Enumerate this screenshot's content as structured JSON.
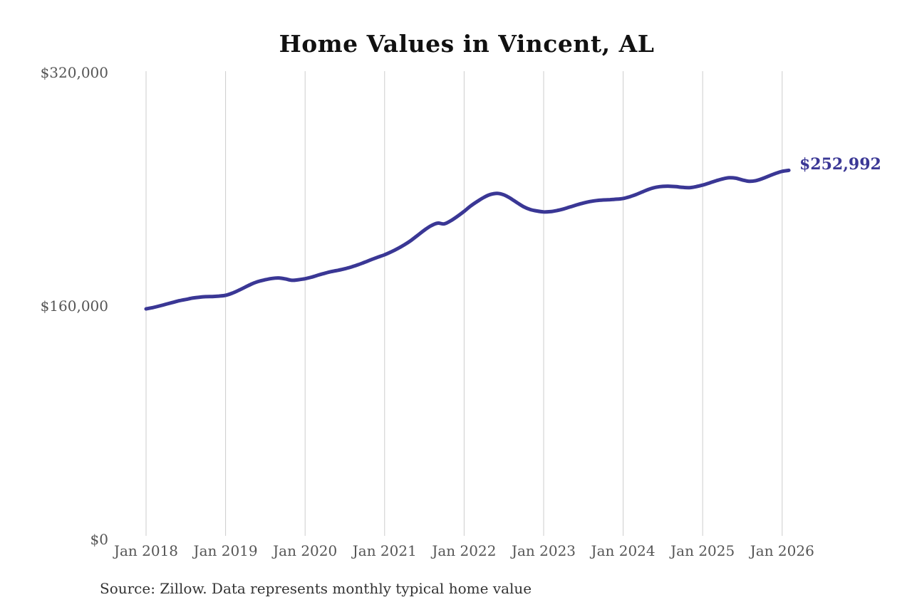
{
  "title": "Home Values in Vincent, AL",
  "end_label": "$252,992",
  "source_note": "Source: Zillow. Data represents monthly typical home value",
  "colors": {
    "line": "#3a3795",
    "grid": "#cccccc",
    "axis_text": "#555555",
    "title_text": "#111111",
    "end_label_text": "#3a3795",
    "source_text": "#333333",
    "background": "#ffffff"
  },
  "chart_data": {
    "type": "line",
    "title": "Home Values in Vincent, AL",
    "xlabel": "",
    "ylabel": "",
    "ylim": [
      0,
      320000
    ],
    "grid": "vertical-only",
    "legend": "none",
    "start_month": "Jan 2018",
    "interval": "monthly",
    "final_value": 252992,
    "x_tick_labels": [
      "Jan 2018",
      "Jan 2019",
      "Jan 2020",
      "Jan 2021",
      "Jan 2022",
      "Jan 2023",
      "Jan 2024",
      "Jan 2025",
      "Jan 2026"
    ],
    "y_ticks": [
      {
        "label": "$0",
        "value": 0
      },
      {
        "label": "$160,000",
        "value": 160000
      },
      {
        "label": "$320,000",
        "value": 320000
      }
    ],
    "series": [
      {
        "name": "Typical home value",
        "values": [
          158000,
          158900,
          160000,
          161200,
          162400,
          163600,
          164500,
          165400,
          166000,
          166400,
          166500,
          166800,
          167300,
          168800,
          170800,
          173000,
          175200,
          176900,
          178000,
          178900,
          179200,
          178600,
          177600,
          178000,
          178700,
          179800,
          181200,
          182500,
          183600,
          184500,
          185500,
          186800,
          188300,
          190000,
          191800,
          193500,
          195100,
          197100,
          199400,
          202000,
          205000,
          208500,
          212000,
          215000,
          216800,
          216300,
          218500,
          221500,
          224900,
          228600,
          231700,
          234500,
          236500,
          237200,
          236200,
          233800,
          230800,
          228000,
          226100,
          225100,
          224500,
          224700,
          225400,
          226500,
          227900,
          229300,
          230600,
          231600,
          232300,
          232700,
          232900,
          233200,
          233700,
          234900,
          236500,
          238400,
          240200,
          241400,
          242000,
          242100,
          241800,
          241300,
          241100,
          241800,
          242900,
          244300,
          245800,
          247100,
          247900,
          247600,
          246400,
          245500,
          245900,
          247300,
          249100,
          250900,
          252300,
          252992
        ]
      }
    ]
  }
}
